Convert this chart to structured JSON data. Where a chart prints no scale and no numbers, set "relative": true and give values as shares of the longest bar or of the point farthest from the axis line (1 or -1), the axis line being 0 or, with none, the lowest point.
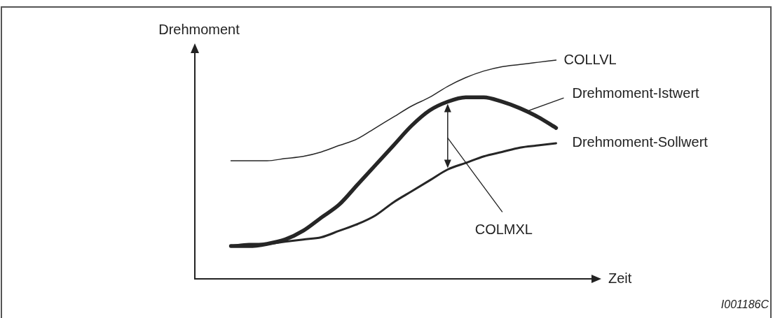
{
  "chart_data": {
    "type": "line",
    "relative": true,
    "xlabel": "Zeit",
    "ylabel": "Drehmoment",
    "categories": [
      null,
      null,
      null,
      null,
      null,
      null,
      null,
      null,
      null,
      null,
      null,
      null,
      null,
      null,
      null,
      null,
      null,
      null,
      null,
      null,
      null,
      null,
      null
    ],
    "series": [
      {
        "name": "COLLVL",
        "color": "#262626",
        "values": [
          null,
          null,
          0.54,
          0.54,
          0.54,
          0.55,
          0.56,
          0.58,
          0.61,
          0.64,
          0.69,
          0.74,
          0.79,
          0.83,
          0.88,
          0.92,
          0.95,
          0.97,
          0.98,
          0.99,
          1,
          null,
          null
        ]
      },
      {
        "name": "Drehmoment-Istwert",
        "color": "#262626",
        "values": [
          null,
          null,
          0.15,
          0.15,
          0.16,
          0.18,
          0.22,
          0.28,
          0.34,
          0.43,
          0.52,
          0.61,
          0.7,
          0.77,
          0.81,
          0.83,
          0.83,
          0.81,
          0.78,
          0.74,
          0.69,
          null,
          null
        ]
      },
      {
        "name": "Drehmoment-Sollwert",
        "color": "#262626",
        "values": [
          null,
          null,
          0.15,
          0.16,
          0.16,
          0.17,
          0.18,
          0.19,
          0.22,
          0.25,
          0.29,
          0.35,
          0.4,
          0.45,
          0.5,
          0.53,
          0.56,
          0.58,
          0.6,
          0.61,
          0.62,
          null,
          null
        ]
      }
    ],
    "annotations": [
      "COLMXL",
      "I001186C"
    ]
  }
}
